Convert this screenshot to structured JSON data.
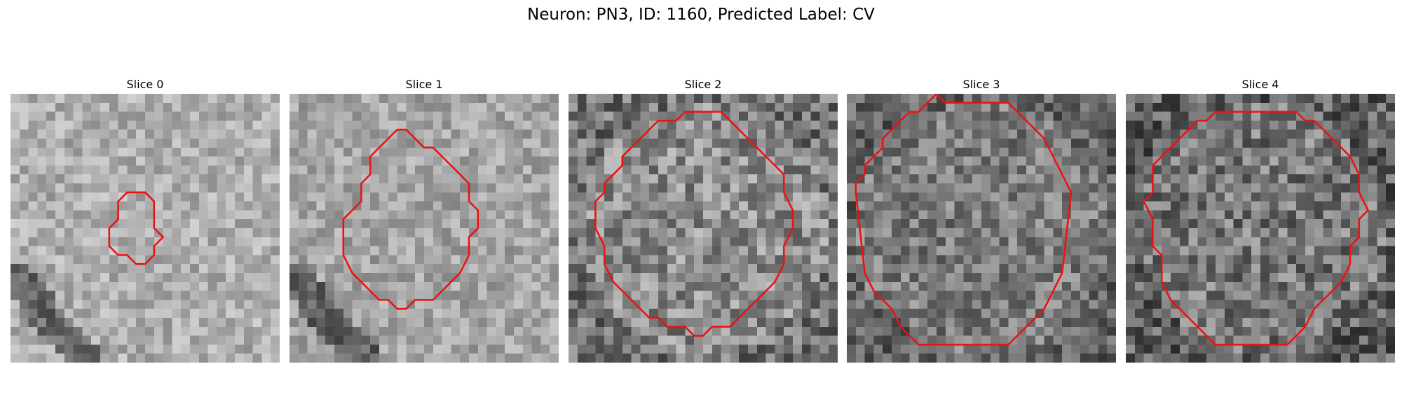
{
  "figure": {
    "title": "Neuron: PN3, ID: 1160, Predicted Label: CV",
    "contour_color": "#ee1111",
    "colormap": "gray"
  },
  "slices": [
    {
      "title": "Slice 0",
      "contour": [
        [
          13,
          11
        ],
        [
          12,
          12
        ],
        [
          12,
          14
        ],
        [
          11,
          15
        ],
        [
          11,
          17
        ],
        [
          12,
          18
        ],
        [
          13,
          18
        ],
        [
          14,
          19
        ],
        [
          15,
          19
        ],
        [
          16,
          18
        ],
        [
          16,
          17
        ],
        [
          17,
          16
        ],
        [
          16,
          15
        ],
        [
          16,
          12
        ],
        [
          15,
          11
        ]
      ]
    },
    {
      "title": "Slice 1",
      "contour": [
        [
          12,
          4
        ],
        [
          11,
          5
        ],
        [
          10,
          6
        ],
        [
          9,
          7
        ],
        [
          9,
          9
        ],
        [
          8,
          10
        ],
        [
          8,
          12
        ],
        [
          7,
          13
        ],
        [
          6,
          14
        ],
        [
          6,
          18
        ],
        [
          7,
          20
        ],
        [
          8,
          21
        ],
        [
          9,
          22
        ],
        [
          10,
          23
        ],
        [
          11,
          23
        ],
        [
          12,
          24
        ],
        [
          13,
          24
        ],
        [
          14,
          23
        ],
        [
          16,
          23
        ],
        [
          17,
          22
        ],
        [
          18,
          21
        ],
        [
          19,
          20
        ],
        [
          20,
          18
        ],
        [
          20,
          16
        ],
        [
          21,
          15
        ],
        [
          21,
          13
        ],
        [
          20,
          12
        ],
        [
          20,
          10
        ],
        [
          19,
          9
        ],
        [
          18,
          8
        ],
        [
          17,
          7
        ],
        [
          16,
          6
        ],
        [
          15,
          6
        ],
        [
          14,
          5
        ],
        [
          13,
          4
        ]
      ]
    },
    {
      "title": "Slice 2",
      "contour": [
        [
          10,
          3
        ],
        [
          9,
          4
        ],
        [
          8,
          5
        ],
        [
          7,
          6
        ],
        [
          6,
          7
        ],
        [
          6,
          8
        ],
        [
          5,
          9
        ],
        [
          4,
          10
        ],
        [
          4,
          11
        ],
        [
          3,
          12
        ],
        [
          3,
          15
        ],
        [
          4,
          17
        ],
        [
          4,
          19
        ],
        [
          5,
          21
        ],
        [
          6,
          22
        ],
        [
          7,
          23
        ],
        [
          8,
          24
        ],
        [
          9,
          25
        ],
        [
          10,
          25
        ],
        [
          11,
          26
        ],
        [
          13,
          26
        ],
        [
          14,
          27
        ],
        [
          15,
          27
        ],
        [
          16,
          26
        ],
        [
          18,
          26
        ],
        [
          19,
          25
        ],
        [
          20,
          24
        ],
        [
          21,
          23
        ],
        [
          22,
          22
        ],
        [
          23,
          21
        ],
        [
          24,
          19
        ],
        [
          24,
          17
        ],
        [
          25,
          15
        ],
        [
          25,
          13
        ],
        [
          24,
          11
        ],
        [
          24,
          9
        ],
        [
          23,
          8
        ],
        [
          22,
          7
        ],
        [
          21,
          6
        ],
        [
          20,
          5
        ],
        [
          19,
          4
        ],
        [
          18,
          3
        ],
        [
          17,
          2
        ],
        [
          13,
          2
        ],
        [
          12,
          3
        ]
      ]
    },
    {
      "title": "Slice 3",
      "contour": [
        [
          9,
          1
        ],
        [
          8,
          2
        ],
        [
          7,
          2
        ],
        [
          6,
          3
        ],
        [
          5,
          4
        ],
        [
          4,
          5
        ],
        [
          4,
          6
        ],
        [
          3,
          7
        ],
        [
          2,
          8
        ],
        [
          2,
          9
        ],
        [
          1,
          10
        ],
        [
          1,
          11
        ],
        [
          2,
          20
        ],
        [
          3,
          22
        ],
        [
          4,
          23
        ],
        [
          5,
          24
        ],
        [
          6,
          26
        ],
        [
          7,
          27
        ],
        [
          8,
          28
        ],
        [
          18,
          28
        ],
        [
          19,
          27
        ],
        [
          20,
          26
        ],
        [
          21,
          25
        ],
        [
          22,
          24
        ],
        [
          23,
          22
        ],
        [
          24,
          20
        ],
        [
          25,
          11
        ],
        [
          24,
          9
        ],
        [
          23,
          7
        ],
        [
          22,
          5
        ],
        [
          21,
          4
        ],
        [
          20,
          3
        ],
        [
          19,
          2
        ],
        [
          18,
          1
        ],
        [
          11,
          1
        ],
        [
          10,
          0
        ]
      ]
    },
    {
      "title": "Slice 4",
      "contour": [
        [
          10,
          2
        ],
        [
          9,
          3
        ],
        [
          8,
          3
        ],
        [
          7,
          4
        ],
        [
          6,
          5
        ],
        [
          5,
          6
        ],
        [
          4,
          7
        ],
        [
          3,
          8
        ],
        [
          3,
          10
        ],
        [
          3,
          11
        ],
        [
          2,
          12
        ],
        [
          3,
          14
        ],
        [
          3,
          17
        ],
        [
          4,
          18
        ],
        [
          4,
          21
        ],
        [
          5,
          23
        ],
        [
          6,
          24
        ],
        [
          7,
          25
        ],
        [
          8,
          26
        ],
        [
          9,
          27
        ],
        [
          10,
          28
        ],
        [
          18,
          28
        ],
        [
          19,
          27
        ],
        [
          20,
          26
        ],
        [
          21,
          24
        ],
        [
          22,
          23
        ],
        [
          23,
          22
        ],
        [
          24,
          21
        ],
        [
          25,
          19
        ],
        [
          25,
          17
        ],
        [
          26,
          16
        ],
        [
          26,
          14
        ],
        [
          27,
          13
        ],
        [
          26,
          11
        ],
        [
          26,
          9
        ],
        [
          25,
          7
        ],
        [
          24,
          6
        ],
        [
          23,
          5
        ],
        [
          22,
          4
        ],
        [
          21,
          3
        ],
        [
          20,
          3
        ],
        [
          19,
          2
        ],
        [
          17,
          2
        ]
      ]
    }
  ]
}
